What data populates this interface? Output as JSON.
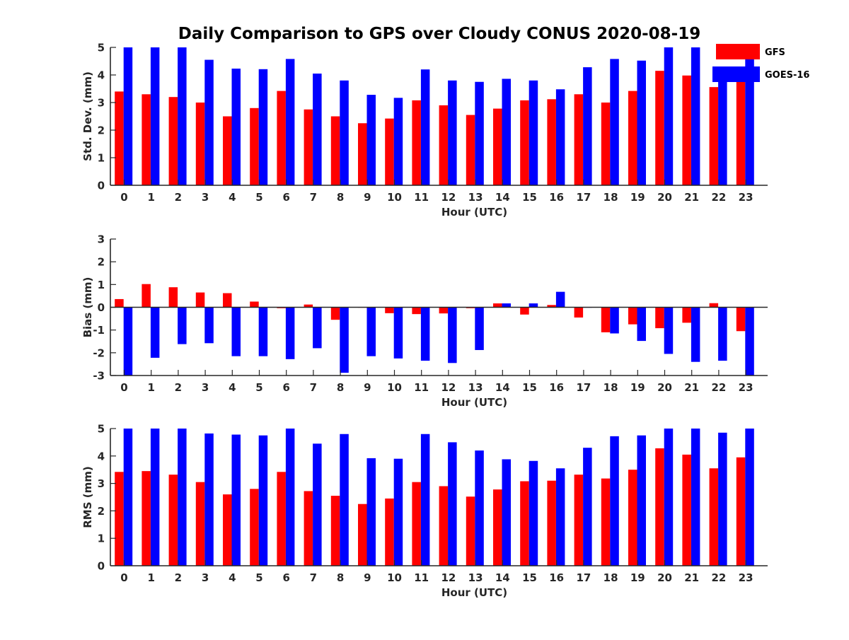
{
  "figure": {
    "title": "Daily Comparison to GPS over Cloudy CONUS 2020-08-19"
  },
  "legend": {
    "placement": "top-right",
    "entries": [
      {
        "label": "GFS",
        "color": "#ff0000"
      },
      {
        "label": "GOES-16",
        "color": "#0000ff"
      }
    ]
  },
  "chart_data": [
    {
      "type": "bar",
      "xlabel": "Hour (UTC)",
      "ylabel": "Std. Dev. (mm)",
      "ylim": [
        0,
        5
      ],
      "yticks": [
        0,
        1,
        2,
        3,
        4,
        5
      ],
      "categories": [
        "0",
        "1",
        "2",
        "3",
        "4",
        "5",
        "6",
        "7",
        "8",
        "9",
        "10",
        "11",
        "12",
        "13",
        "14",
        "15",
        "16",
        "17",
        "18",
        "19",
        "20",
        "21",
        "22",
        "23"
      ],
      "series": [
        {
          "name": "GFS",
          "color": "#ff0000",
          "values": [
            3.4,
            3.3,
            3.2,
            3.0,
            2.5,
            2.8,
            3.42,
            2.75,
            2.5,
            2.25,
            2.42,
            3.08,
            2.9,
            2.55,
            2.78,
            3.08,
            3.12,
            3.3,
            3.0,
            3.42,
            4.15,
            3.98,
            3.56,
            3.85
          ]
        },
        {
          "name": "GOES-16",
          "color": "#0000ff",
          "values": [
            5.0,
            5.0,
            5.0,
            4.55,
            4.23,
            4.21,
            4.58,
            4.05,
            3.8,
            3.28,
            3.17,
            4.2,
            3.8,
            3.75,
            3.86,
            3.8,
            3.48,
            4.28,
            4.58,
            4.52,
            5.0,
            5.0,
            4.2,
            4.6
          ]
        }
      ]
    },
    {
      "type": "bar",
      "xlabel": "Hour (UTC)",
      "ylabel": "Bias (mm)",
      "ylim": [
        -3,
        3
      ],
      "yticks": [
        -3,
        -2,
        -1,
        0,
        1,
        2,
        3
      ],
      "categories": [
        "0",
        "1",
        "2",
        "3",
        "4",
        "5",
        "6",
        "7",
        "8",
        "9",
        "10",
        "11",
        "12",
        "13",
        "14",
        "15",
        "16",
        "17",
        "18",
        "19",
        "20",
        "21",
        "22",
        "23"
      ],
      "series": [
        {
          "name": "GFS",
          "color": "#ff0000",
          "values": [
            0.36,
            1.02,
            0.88,
            0.65,
            0.62,
            0.25,
            -0.04,
            0.12,
            -0.55,
            0.0,
            -0.26,
            -0.3,
            -0.27,
            -0.04,
            0.17,
            -0.32,
            0.1,
            -0.45,
            -1.1,
            -0.75,
            -0.92,
            -0.68,
            0.18,
            -1.05
          ]
        },
        {
          "name": "GOES-16",
          "color": "#0000ff",
          "values": [
            -3.0,
            -2.22,
            -1.62,
            -1.58,
            -2.15,
            -2.15,
            -2.28,
            -1.8,
            -2.88,
            -2.15,
            -2.25,
            -2.35,
            -2.45,
            -1.88,
            0.17,
            0.17,
            0.68,
            0.0,
            -1.15,
            -1.48,
            -2.05,
            -2.4,
            -2.35,
            -3.0
          ]
        }
      ]
    },
    {
      "type": "bar",
      "xlabel": "Hour (UTC)",
      "ylabel": "RMS (mm)",
      "ylim": [
        0,
        5
      ],
      "yticks": [
        0,
        1,
        2,
        3,
        4,
        5
      ],
      "categories": [
        "0",
        "1",
        "2",
        "3",
        "4",
        "5",
        "6",
        "7",
        "8",
        "9",
        "10",
        "11",
        "12",
        "13",
        "14",
        "15",
        "16",
        "17",
        "18",
        "19",
        "20",
        "21",
        "22",
        "23"
      ],
      "series": [
        {
          "name": "GFS",
          "color": "#ff0000",
          "values": [
            3.42,
            3.45,
            3.32,
            3.05,
            2.6,
            2.8,
            3.42,
            2.72,
            2.55,
            2.25,
            2.45,
            3.05,
            2.9,
            2.52,
            2.78,
            3.08,
            3.1,
            3.32,
            3.18,
            3.5,
            4.28,
            4.05,
            3.55,
            3.95
          ]
        },
        {
          "name": "GOES-16",
          "color": "#0000ff",
          "values": [
            5.0,
            5.0,
            5.0,
            4.82,
            4.78,
            4.75,
            5.0,
            4.45,
            4.8,
            3.92,
            3.9,
            4.8,
            4.5,
            4.2,
            3.88,
            3.82,
            3.55,
            4.3,
            4.72,
            4.75,
            5.0,
            5.0,
            4.85,
            5.0
          ]
        }
      ]
    }
  ]
}
